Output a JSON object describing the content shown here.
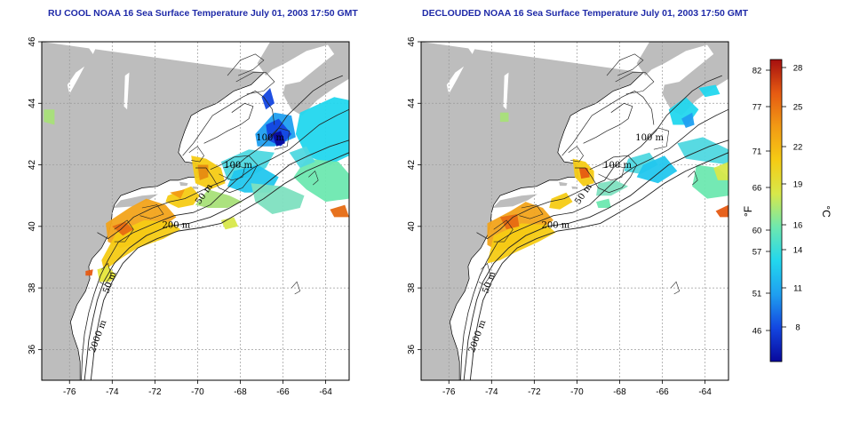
{
  "panels": [
    {
      "id": "left",
      "title": "RU COOL NOAA 16 Sea Surface Temperature July 01, 2003 17:50 GMT",
      "contour_labels": [
        "100 m",
        "50 m",
        "200 m",
        "50 m",
        "2000 m",
        "100 m"
      ]
    },
    {
      "id": "right",
      "title": "DECLOUDED NOAA 16 Sea Surface Temperature July 01, 2003 17:50 GMT",
      "contour_labels": [
        "100 m",
        "50 m",
        "200 m",
        "50 m",
        "2000 m",
        "100 m"
      ]
    }
  ],
  "axes": {
    "x_ticks": [
      "-76",
      "-74",
      "-72",
      "-70",
      "-68",
      "-66",
      "-64"
    ],
    "y_ticks": [
      "46",
      "44",
      "42",
      "40",
      "38",
      "36"
    ],
    "x_range": [
      -77.3,
      -62.9
    ],
    "y_range": [
      35.0,
      46.0
    ],
    "grid": "dotted"
  },
  "colorbar": {
    "fahrenheit_label": "°F",
    "celsius_label": "°C",
    "fahrenheit_ticks": [
      "82",
      "77",
      "71",
      "66",
      "60",
      "57",
      "51",
      "46"
    ],
    "celsius_ticks": [
      "28",
      "25",
      "22",
      "19",
      "16",
      "14",
      "11",
      "8"
    ],
    "colors": [
      "#08089c",
      "#1346e0",
      "#1f9ff0",
      "#22d7ee",
      "#6de8b0",
      "#d8e84a",
      "#f5cb14",
      "#f29a14",
      "#e65a12",
      "#a50f0f"
    ]
  },
  "colors": {
    "land": "#bdbdbd",
    "ocean": "#ffffff",
    "title": "#1f2aa8"
  }
}
